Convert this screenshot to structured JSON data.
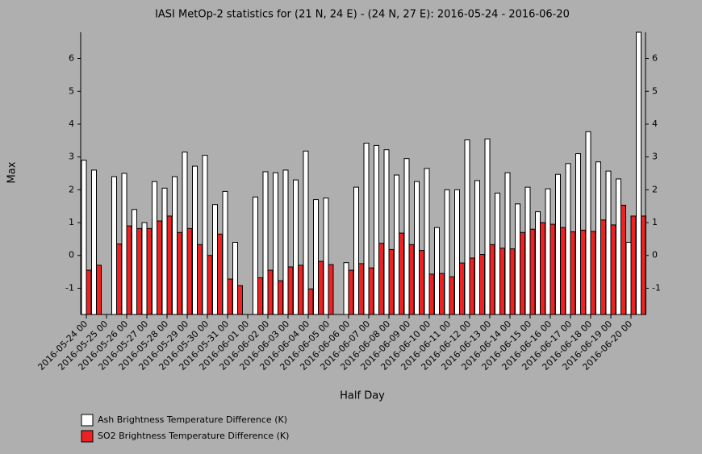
{
  "chart_data": {
    "type": "bar",
    "title": "IASI MetOp-2 statistics for (21 N, 24 E) - (24 N, 27 E): 2016-05-24 - 2016-06-20",
    "x_label": "Half Day",
    "y_label": "Max",
    "categories": [
      "2016-05-24 00",
      null,
      "2016-05-25 00",
      null,
      "2016-05-26 00",
      null,
      "2016-05-27 00",
      null,
      "2016-05-28 00",
      null,
      "2016-05-29 00",
      null,
      "2016-05-30 00",
      null,
      "2016-05-31 00",
      null,
      "2016-06-01 00",
      null,
      "2016-06-02 00",
      null,
      "2016-06-03 00",
      null,
      "2016-06-04 00",
      null,
      "2016-06-05 00",
      null,
      "2016-06-06 00",
      null,
      "2016-06-07 00",
      null,
      "2016-06-08 00",
      null,
      "2016-06-09 00",
      null,
      "2016-06-10 00",
      null,
      "2016-06-11 00",
      null,
      "2016-06-12 00",
      null,
      "2016-06-13 00",
      null,
      "2016-06-14 00",
      null,
      "2016-06-15 00",
      null,
      "2016-06-16 00",
      null,
      "2016-06-17 00",
      null,
      "2016-06-18 00",
      null,
      "2016-06-19 00",
      null,
      "2016-06-20 00",
      null
    ],
    "series": [
      {
        "name": "Ash Brightness Temperature Difference (K)",
        "color": "#ffffff",
        "values": [
          2.9,
          2.6,
          null,
          2.4,
          2.5,
          1.4,
          1.0,
          2.25,
          2.05,
          2.4,
          3.15,
          2.72,
          3.05,
          1.55,
          1.95,
          0.4,
          null,
          1.78,
          2.55,
          2.52,
          2.6,
          2.3,
          3.18,
          1.7,
          1.75,
          null,
          -0.22,
          2.08,
          3.42,
          3.35,
          3.22,
          2.45,
          2.95,
          2.25,
          2.65,
          0.85,
          2.0,
          2.0,
          3.52,
          2.28,
          3.55,
          1.9,
          2.52,
          1.57,
          2.08,
          1.33,
          2.03,
          2.47,
          2.8,
          3.1,
          3.77,
          2.85,
          2.57,
          2.33,
          0.4,
          6.8
        ]
      },
      {
        "name": "SO2 Brightness Temperature Difference (K)",
        "color": "#ee2222",
        "values": [
          -0.45,
          -0.3,
          null,
          0.35,
          0.9,
          0.82,
          0.82,
          1.05,
          1.2,
          0.7,
          0.82,
          0.33,
          0.0,
          0.65,
          -0.72,
          -0.92,
          null,
          -0.68,
          -0.45,
          -0.77,
          -0.35,
          -0.3,
          -1.02,
          -0.18,
          -0.28,
          null,
          -0.45,
          -0.25,
          -0.38,
          0.37,
          0.18,
          0.68,
          0.33,
          0.15,
          -0.57,
          -0.55,
          -0.65,
          -0.23,
          -0.08,
          0.03,
          0.33,
          0.22,
          0.2,
          0.7,
          0.8,
          1.0,
          0.95,
          0.85,
          0.72,
          0.77,
          0.73,
          1.08,
          0.93,
          1.53,
          1.2,
          1.2
        ]
      }
    ],
    "ylim": [
      -1.8,
      6.8
    ],
    "yticks": [
      -1,
      0,
      1,
      2,
      3,
      4,
      5,
      6
    ]
  }
}
